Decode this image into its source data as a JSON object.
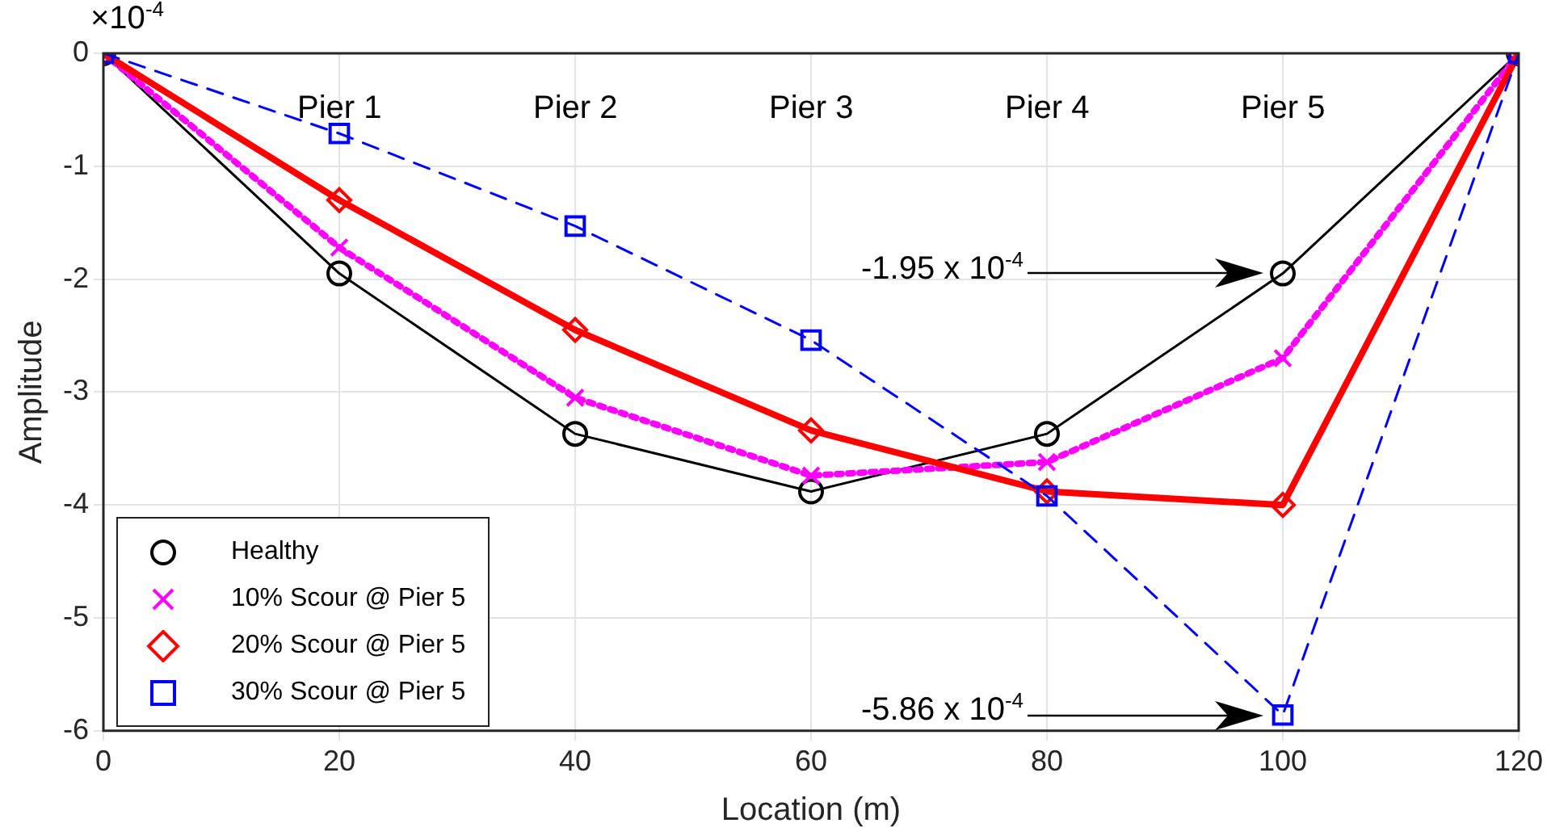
{
  "chart_data": {
    "type": "line",
    "xlabel": "Location (m)",
    "ylabel": "Amplitude",
    "x": [
      0,
      20,
      40,
      60,
      80,
      100,
      120
    ],
    "series": [
      {
        "name": "Healthy",
        "color": "#000000",
        "values": [
          0,
          -1.95,
          -3.37,
          -3.88,
          -3.37,
          -1.95,
          0
        ],
        "marker": "circle",
        "line_style": "solid"
      },
      {
        "name": "10% Scour @ Pier 5",
        "color": "#ff00ff",
        "values": [
          0,
          -1.72,
          -3.05,
          -3.74,
          -3.62,
          -2.7,
          0
        ],
        "marker": "cross",
        "line_style": "dotted"
      },
      {
        "name": "20% Scour @ Pier 5",
        "color": "#ff0000",
        "values": [
          0,
          -1.3,
          -2.45,
          -3.34,
          -3.88,
          -4.0,
          0
        ],
        "marker": "diamond",
        "line_style": "solid"
      },
      {
        "name": "30% Scour @ Pier 5",
        "color": "#0000ff",
        "values": [
          0,
          -0.71,
          -1.53,
          -2.54,
          -3.92,
          -5.86,
          0
        ],
        "marker": "square",
        "line_style": "dashed"
      }
    ],
    "xlim": [
      0,
      120
    ],
    "xticks": [
      0,
      20,
      40,
      60,
      80,
      100,
      120
    ],
    "ylim": [
      -6,
      0
    ],
    "yticks": [
      -6,
      -5,
      -4,
      -3,
      -2,
      -1,
      0
    ],
    "grid": true,
    "legend": "bottom left",
    "annotations": [
      "×10$^{-4}$",
      "Pier 1",
      "Pier 2",
      "Pier 3",
      "Pier 4",
      "Pier 5",
      "-1.95 x 10$^{-4}$",
      "-5.86 x 10$^{-4}$"
    ]
  }
}
